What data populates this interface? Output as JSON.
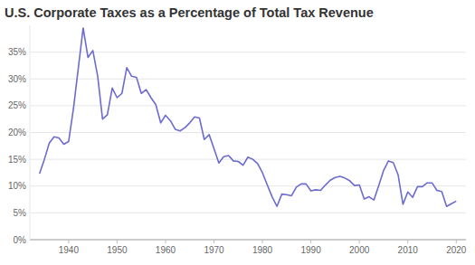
{
  "chart_data": {
    "type": "line",
    "title": "U.S. Corporate Taxes as a Percentage of Total Tax Revenue",
    "x": [
      1934,
      1935,
      1936,
      1937,
      1938,
      1939,
      1940,
      1941,
      1942,
      1943,
      1944,
      1945,
      1946,
      1947,
      1948,
      1949,
      1950,
      1951,
      1952,
      1953,
      1954,
      1955,
      1956,
      1957,
      1958,
      1959,
      1960,
      1961,
      1962,
      1963,
      1964,
      1965,
      1966,
      1967,
      1968,
      1969,
      1970,
      1971,
      1972,
      1973,
      1974,
      1975,
      1976,
      1977,
      1978,
      1979,
      1980,
      1981,
      1982,
      1983,
      1984,
      1985,
      1986,
      1987,
      1988,
      1989,
      1990,
      1991,
      1992,
      1993,
      1994,
      1995,
      1996,
      1997,
      1998,
      1999,
      2000,
      2001,
      2002,
      2003,
      2004,
      2005,
      2006,
      2007,
      2008,
      2009,
      2010,
      2011,
      2012,
      2013,
      2014,
      2015,
      2016,
      2017,
      2018,
      2019,
      2020
    ],
    "values": [
      12.3,
      15,
      18,
      19.2,
      19,
      17.8,
      18.3,
      24.5,
      32,
      39.5,
      34,
      35.3,
      30.5,
      22.5,
      23.3,
      28.3,
      26.5,
      27.3,
      32.1,
      30.5,
      30.3,
      27.3,
      28,
      26.5,
      25.2,
      21.8,
      23.2,
      22.2,
      20.6,
      20.3,
      20.9,
      21.8,
      22.9,
      22.7,
      18.7,
      19.6,
      17,
      14.3,
      15.5,
      15.7,
      14.7,
      14.6,
      13.9,
      15.4,
      15,
      14.2,
      12.5,
      10.2,
      8,
      6.2,
      8.5,
      8.4,
      8.2,
      9.8,
      10.4,
      10.4,
      9.1,
      9.3,
      9.2,
      10.2,
      11.1,
      11.6,
      11.8,
      11.5,
      11,
      10.1,
      10.2,
      7.6,
      8,
      7.4,
      10.1,
      12.9,
      14.7,
      14.4,
      12.1,
      6.6,
      8.9,
      7.9,
      9.9,
      9.9,
      10.6,
      10.6,
      9.2,
      9,
      6.2,
      6.7,
      7.2
    ],
    "color": "#6b6bd1",
    "xlim": [
      1932,
      2022
    ],
    "xticks": [
      1940,
      1950,
      1960,
      1970,
      1980,
      1990,
      2000,
      2010,
      2020
    ],
    "ylim": [
      0,
      40
    ],
    "yticks": [
      {
        "value": 0,
        "label": "0%"
      },
      {
        "value": 5,
        "label": "5%"
      },
      {
        "value": 10,
        "label": "10%"
      },
      {
        "value": 15,
        "label": "15%"
      },
      {
        "value": 20,
        "label": "20%"
      },
      {
        "value": 25,
        "label": "25%"
      },
      {
        "value": 30,
        "label": "30%"
      },
      {
        "value": 35,
        "label": "35%"
      }
    ],
    "grid": true
  }
}
